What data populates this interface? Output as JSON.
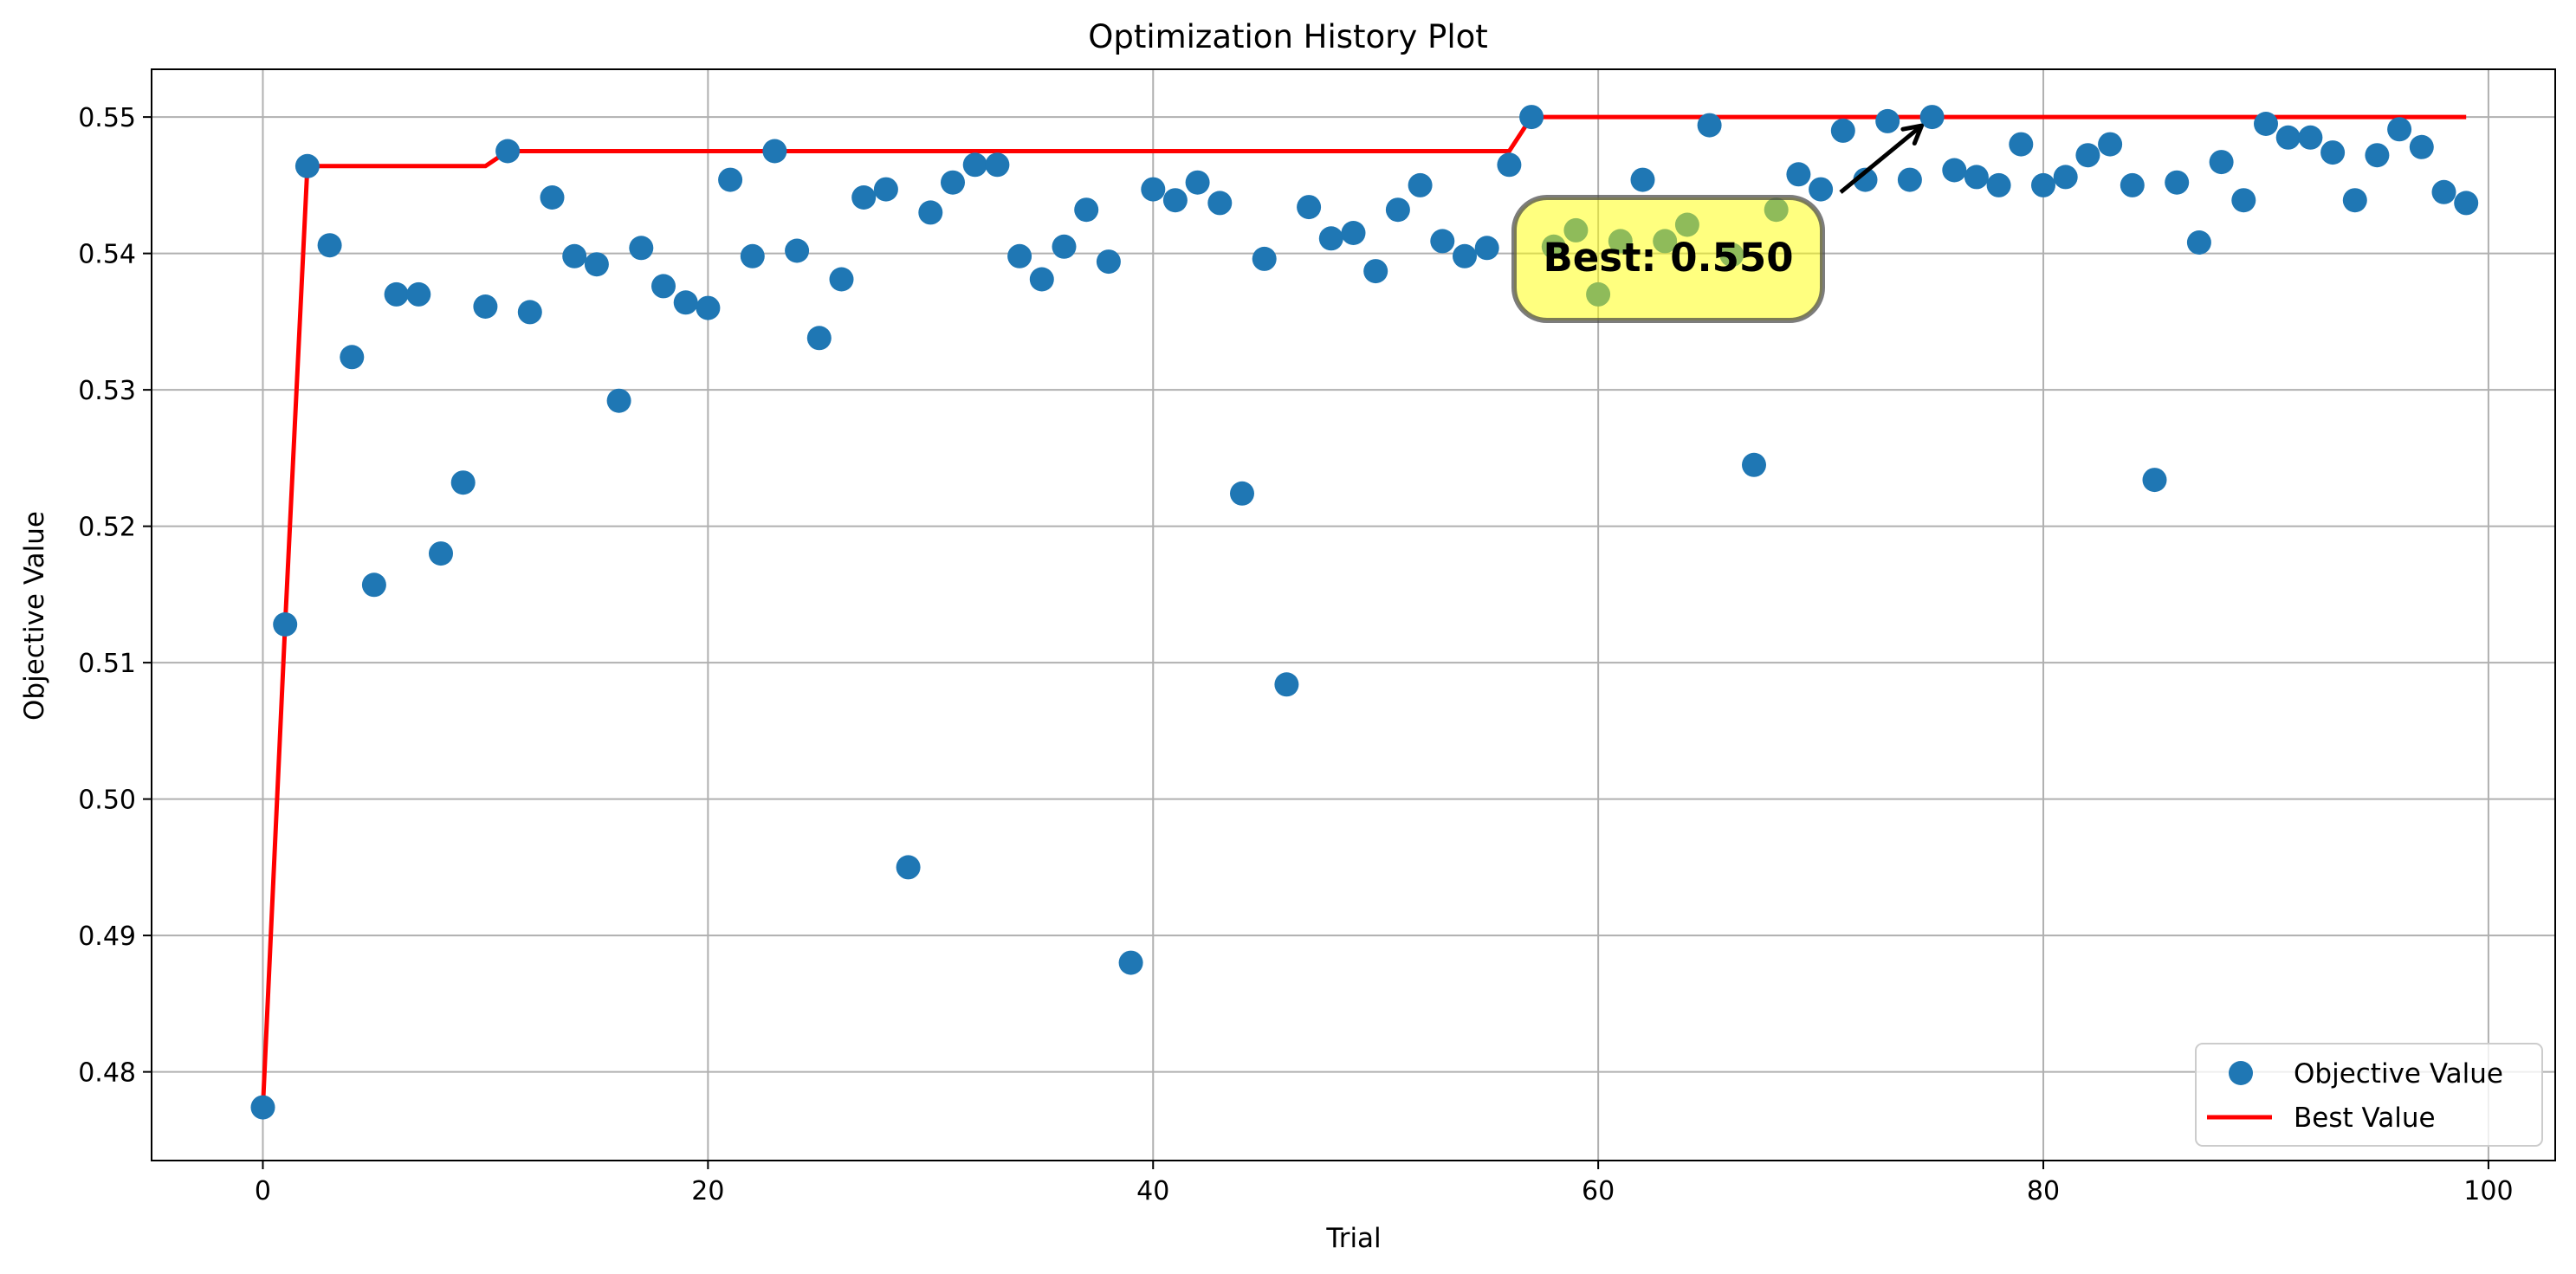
{
  "chart_data": {
    "type": "scatter",
    "title": "Optimization History Plot",
    "xlabel": "Trial",
    "ylabel": "Objective Value",
    "xlim": [
      -5,
      103
    ],
    "ylim": [
      0.4735,
      0.5535
    ],
    "xticks": [
      0,
      20,
      40,
      60,
      80,
      100
    ],
    "xtick_labels": [
      "0",
      "20",
      "40",
      "60",
      "80",
      "100"
    ],
    "yticks": [
      0.48,
      0.49,
      0.5,
      0.51,
      0.52,
      0.53,
      0.54,
      0.55
    ],
    "ytick_labels": [
      "0.48",
      "0.49",
      "0.50",
      "0.51",
      "0.52",
      "0.53",
      "0.54",
      "0.55"
    ],
    "grid": true,
    "legend_position": "lower-right",
    "series": [
      {
        "name": "Objective Value",
        "kind": "scatter",
        "color": "#1f77b4",
        "x": [
          0,
          1,
          2,
          3,
          4,
          5,
          6,
          7,
          8,
          9,
          10,
          11,
          12,
          13,
          14,
          15,
          16,
          17,
          18,
          19,
          20,
          21,
          22,
          23,
          24,
          25,
          26,
          27,
          28,
          29,
          30,
          31,
          32,
          33,
          34,
          35,
          36,
          37,
          38,
          39,
          40,
          41,
          42,
          43,
          44,
          45,
          46,
          47,
          48,
          49,
          50,
          51,
          52,
          53,
          54,
          55,
          56,
          57,
          58,
          59,
          60,
          61,
          62,
          63,
          64,
          65,
          66,
          67,
          68,
          69,
          70,
          71,
          72,
          73,
          74,
          75,
          76,
          77,
          78,
          79,
          80,
          81,
          82,
          83,
          84,
          85,
          86,
          87,
          88,
          89,
          90,
          91,
          92,
          93,
          94,
          95,
          96,
          97,
          98,
          99
        ],
        "y": [
          0.4774,
          0.5128,
          0.5464,
          0.5406,
          0.5324,
          0.5157,
          0.537,
          0.537,
          0.518,
          0.5232,
          0.5361,
          0.5475,
          0.5357,
          0.5441,
          0.5398,
          0.5392,
          0.5292,
          0.5404,
          0.5376,
          0.5364,
          0.536,
          0.5454,
          0.5398,
          0.5475,
          0.5402,
          0.5338,
          0.5381,
          0.5441,
          0.5447,
          0.495,
          0.543,
          0.5452,
          0.5465,
          0.5465,
          0.5398,
          0.5381,
          0.5405,
          0.5432,
          0.5394,
          0.488,
          0.5447,
          0.5439,
          0.5452,
          0.5437,
          0.5224,
          0.5396,
          0.5084,
          0.5434,
          0.5411,
          0.5415,
          0.5387,
          0.5432,
          0.545,
          0.5409,
          0.5398,
          0.5404,
          0.5465,
          0.55,
          0.5405,
          0.5417,
          0.537,
          0.5409,
          0.5454,
          0.5409,
          0.5421,
          0.5494,
          0.5399,
          0.5245,
          0.5432,
          0.5458,
          0.5447,
          0.549,
          0.5454,
          0.5497,
          0.5454,
          0.55,
          0.5461,
          0.5456,
          0.545,
          0.548,
          0.545,
          0.5456,
          0.5472,
          0.548,
          0.545,
          0.5234,
          0.5452,
          0.5408,
          0.5467,
          0.5439,
          0.5495,
          0.5485,
          0.5485,
          0.5474,
          0.5439,
          0.5472,
          0.5491,
          0.5478,
          0.5445,
          0.5437
        ]
      },
      {
        "name": "Best Value",
        "kind": "line",
        "color": "#ff0000",
        "x": [
          0,
          1,
          2,
          3,
          4,
          5,
          6,
          7,
          8,
          9,
          10,
          11,
          12,
          13,
          14,
          15,
          16,
          17,
          18,
          19,
          20,
          21,
          22,
          23,
          24,
          25,
          26,
          27,
          28,
          29,
          30,
          31,
          32,
          33,
          34,
          35,
          36,
          37,
          38,
          39,
          40,
          41,
          42,
          43,
          44,
          45,
          46,
          47,
          48,
          49,
          50,
          51,
          52,
          53,
          54,
          55,
          56,
          57,
          58,
          59,
          60,
          61,
          62,
          63,
          64,
          65,
          66,
          67,
          68,
          69,
          70,
          71,
          72,
          73,
          74,
          75,
          76,
          77,
          78,
          79,
          80,
          81,
          82,
          83,
          84,
          85,
          86,
          87,
          88,
          89,
          90,
          91,
          92,
          93,
          94,
          95,
          96,
          97,
          98,
          99
        ],
        "y": [
          0.4774,
          0.5128,
          0.5464,
          0.5464,
          0.5464,
          0.5464,
          0.5464,
          0.5464,
          0.5464,
          0.5464,
          0.5464,
          0.5475,
          0.5475,
          0.5475,
          0.5475,
          0.5475,
          0.5475,
          0.5475,
          0.5475,
          0.5475,
          0.5475,
          0.5475,
          0.5475,
          0.5475,
          0.5475,
          0.5475,
          0.5475,
          0.5475,
          0.5475,
          0.5475,
          0.5475,
          0.5475,
          0.5475,
          0.5475,
          0.5475,
          0.5475,
          0.5475,
          0.5475,
          0.5475,
          0.5475,
          0.5475,
          0.5475,
          0.5475,
          0.5475,
          0.5475,
          0.5475,
          0.5475,
          0.5475,
          0.5475,
          0.5475,
          0.5475,
          0.5475,
          0.5475,
          0.5475,
          0.5475,
          0.5475,
          0.5475,
          0.55,
          0.55,
          0.55,
          0.55,
          0.55,
          0.55,
          0.55,
          0.55,
          0.55,
          0.55,
          0.55,
          0.55,
          0.55,
          0.55,
          0.55,
          0.55,
          0.55,
          0.55,
          0.55,
          0.55,
          0.55,
          0.55,
          0.55,
          0.55,
          0.55,
          0.55,
          0.55,
          0.55,
          0.55,
          0.55,
          0.55,
          0.55,
          0.55,
          0.55,
          0.55,
          0.55,
          0.55,
          0.55,
          0.55,
          0.55,
          0.55,
          0.55,
          0.55
        ]
      }
    ],
    "annotation": {
      "text": "Best: 0.550",
      "x": 75,
      "y": 0.55,
      "box_color": "#ffff00",
      "box_edge_color": "#444444"
    }
  }
}
